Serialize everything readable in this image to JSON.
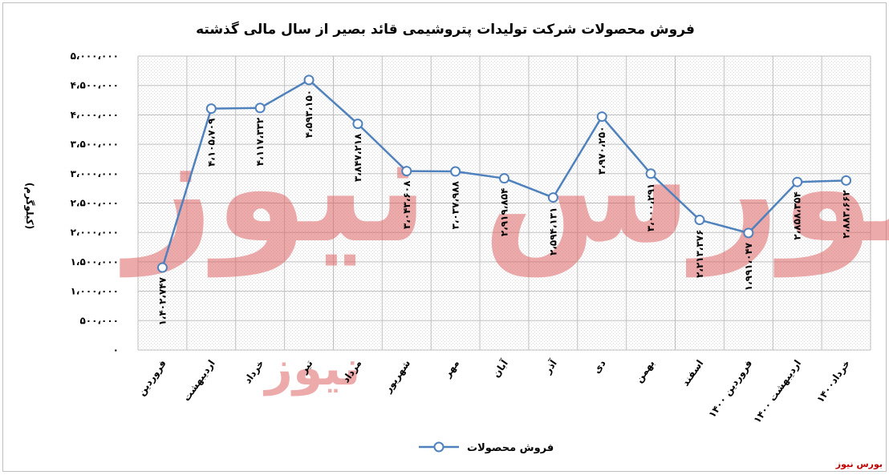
{
  "chart_data": {
    "type": "line",
    "title": "فروش محصولات شرکت تولیدات پتروشیمی قائد بصیر از سال مالی گذشته",
    "ylabel": "(کیلوگرم)",
    "ylim": [
      0,
      5000000
    ],
    "yticks": [
      "۰",
      "۵۰۰،۰۰۰",
      "۱،۰۰۰،۰۰۰",
      "۱،۵۰۰،۰۰۰",
      "۲،۰۰۰،۰۰۰",
      "۲،۵۰۰،۰۰۰",
      "۳،۰۰۰،۰۰۰",
      "۳،۵۰۰،۰۰۰",
      "۴،۰۰۰،۰۰۰",
      "۴،۵۰۰،۰۰۰",
      "۵،۰۰۰،۰۰۰"
    ],
    "grid": true,
    "legend_position": "bottom",
    "categories": [
      "فروردین",
      "اردیبهشت",
      "خرداد",
      "تیر",
      "مرداد",
      "شهریور",
      "مهر",
      "آبان",
      "آذر",
      "دی",
      "بهمن",
      "اسفند",
      "فروردین ۱۴۰۰",
      "اردیبهشت ۱۴۰۰",
      "خرداد۱۴۰۰"
    ],
    "series": [
      {
        "name": "فروش محصولات",
        "color": "#4f81bd",
        "values": [
          1402747,
          4105709,
          4117332,
          4593150,
          3847218,
          3043608,
          3037988,
          2919854,
          2594131,
          3970250,
          3000291,
          2213376,
          1991047,
          2858354,
          2883662
        ],
        "labels": [
          "۱،۴۰۲،۷۴۷",
          "۴،۱۰۵،۷۰۹",
          "۴،۱۱۷،۳۳۲",
          "۴،۵۹۳،۱۵۰",
          "۳،۸۴۷،۲۱۸",
          "۳،۰۴۳،۶۰۸",
          "۳،۰۳۷،۹۸۸",
          "۲،۹۱۹،۸۵۴",
          "۲،۵۹۴،۱۳۱",
          "۳،۹۷۰،۲۵۰",
          "۳،۰۰۰،۲۹۱",
          "۲،۲۱۳،۳۷۶",
          "۱،۹۹۱،۰۴۷",
          "۲،۸۵۸،۳۵۴",
          "۲،۸۸۳،۶۶۲"
        ]
      }
    ]
  },
  "legend_label": "فروش محصولات",
  "source_label": "بورس نیوز",
  "watermark": {
    "text_main": "بورس نیوز",
    "text_accent": "نیوز"
  }
}
